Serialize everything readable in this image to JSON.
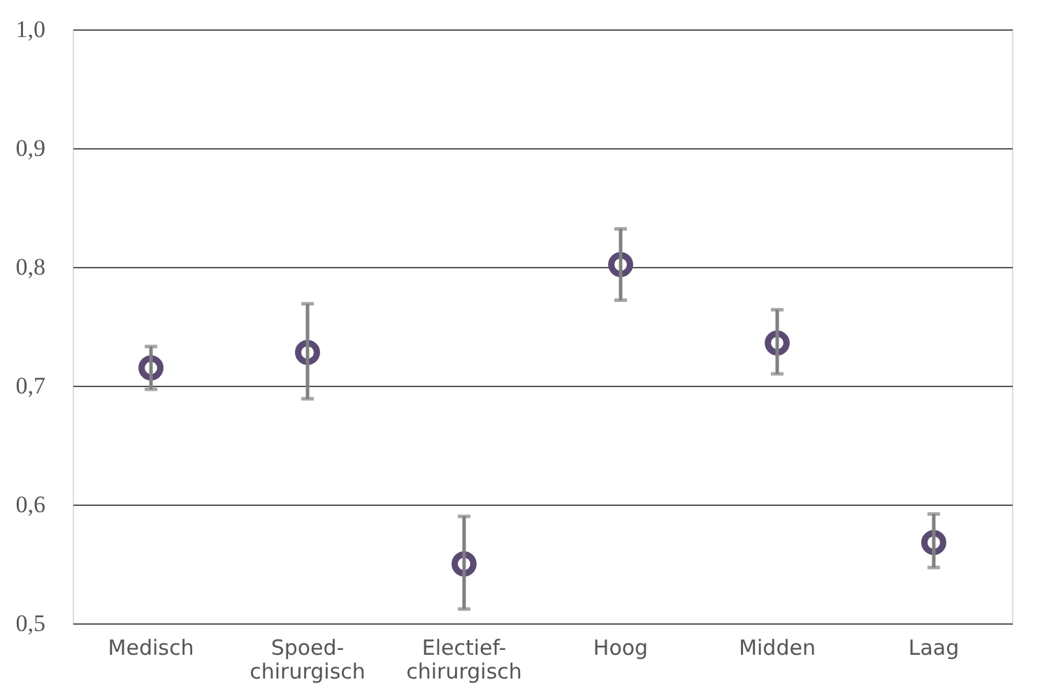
{
  "chart_data": {
    "type": "scatter",
    "categories": [
      "Medisch",
      "Spoed-\nchirurgisch",
      "Electief-\nchirurgisch",
      "Hoog",
      "Midden",
      "Laag"
    ],
    "series": [
      {
        "color": "#5b4a72",
        "values": [
          0.715,
          0.728,
          0.55,
          0.802,
          0.736,
          0.568
        ],
        "errors": [
          [
            0.697,
            0.733
          ],
          [
            0.689,
            0.769
          ],
          [
            0.512,
            0.59
          ],
          [
            0.772,
            0.832
          ],
          [
            0.71,
            0.764
          ],
          [
            0.547,
            0.592
          ]
        ]
      }
    ],
    "ylim": [
      0.5,
      1.0
    ],
    "yticks": [
      {
        "value": 0.5,
        "label": "0,5"
      },
      {
        "value": 0.6,
        "label": "0,6"
      },
      {
        "value": 0.7,
        "label": "0,7"
      },
      {
        "value": 0.8,
        "label": "0,8"
      },
      {
        "value": 0.9,
        "label": "0,9"
      },
      {
        "value": 1.0,
        "label": "1,0"
      }
    ],
    "grid": "y",
    "marker": "circle"
  }
}
